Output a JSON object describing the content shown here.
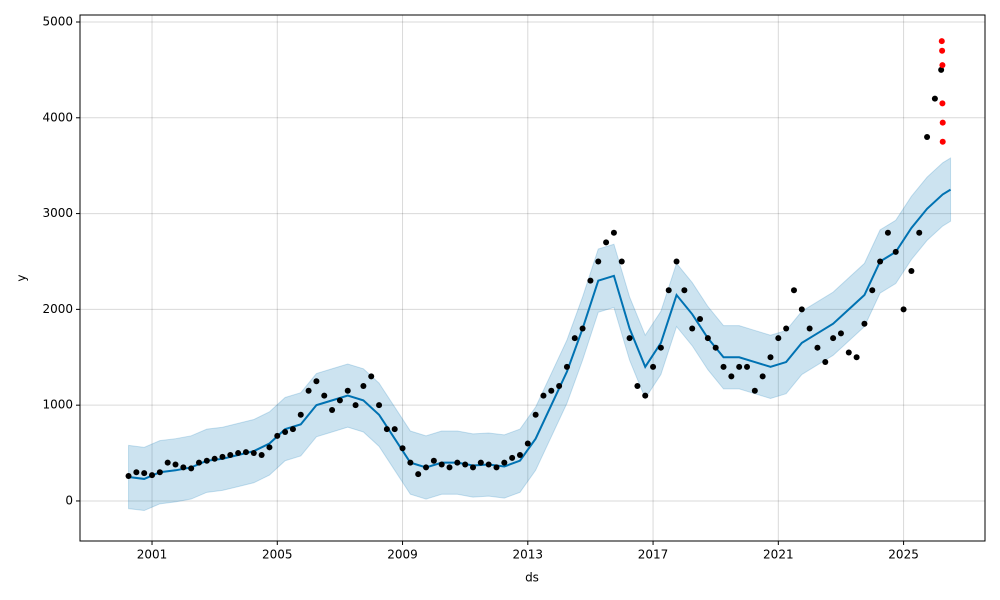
{
  "chart_data": {
    "type": "forecast",
    "xlabel": "ds",
    "ylabel": "y",
    "xlim": [
      1998.7,
      2027.6
    ],
    "xticks": [
      2001,
      2005,
      2009,
      2013,
      2017,
      2021,
      2025
    ],
    "ylim": [
      -418,
      5073
    ],
    "yticks": [
      0,
      1000,
      2000,
      3000,
      4000,
      5000
    ],
    "grid": true,
    "observed": {
      "color": "#000000",
      "x": [
        2000.25,
        2000.5,
        2000.75,
        2001,
        2001.25,
        2001.5,
        2001.75,
        2002,
        2002.25,
        2002.5,
        2002.75,
        2003,
        2003.25,
        2003.5,
        2003.75,
        2004,
        2004.25,
        2004.5,
        2004.75,
        2005,
        2005.25,
        2005.5,
        2005.75,
        2006,
        2006.25,
        2006.5,
        2006.75,
        2007,
        2007.25,
        2007.5,
        2007.75,
        2008,
        2008.25,
        2008.5,
        2008.75,
        2009,
        2009.25,
        2009.5,
        2009.75,
        2010,
        2010.25,
        2010.5,
        2010.75,
        2011,
        2011.25,
        2011.5,
        2011.75,
        2012,
        2012.25,
        2012.5,
        2012.75,
        2013,
        2013.25,
        2013.5,
        2013.75,
        2014,
        2014.25,
        2014.5,
        2014.75,
        2015,
        2015.25,
        2015.5,
        2015.75,
        2016,
        2016.25,
        2016.5,
        2016.75,
        2017,
        2017.25,
        2017.5,
        2017.75,
        2018,
        2018.25,
        2018.5,
        2018.75,
        2019,
        2019.25,
        2019.5,
        2019.75,
        2020,
        2020.25,
        2020.5,
        2020.75,
        2021,
        2021.25,
        2021.5,
        2021.75,
        2022,
        2022.25,
        2022.5,
        2022.75,
        2023,
        2023.25,
        2023.5,
        2023.75,
        2024,
        2024.25,
        2024.5,
        2024.75,
        2025,
        2025.25,
        2025.5,
        2025.75,
        2026,
        2026.2
      ],
      "values": [
        260,
        300,
        290,
        270,
        300,
        400,
        380,
        350,
        340,
        400,
        420,
        440,
        460,
        480,
        500,
        510,
        500,
        480,
        560,
        680,
        720,
        750,
        900,
        1150,
        1250,
        1100,
        950,
        1050,
        1150,
        1000,
        1200,
        1300,
        1000,
        750,
        750,
        550,
        400,
        280,
        350,
        420,
        380,
        350,
        400,
        380,
        350,
        400,
        380,
        350,
        400,
        450,
        480,
        600,
        900,
        1100,
        1150,
        1200,
        1400,
        1700,
        1800,
        2300,
        2500,
        2700,
        2800,
        2500,
        1700,
        1200,
        1100,
        1400,
        1600,
        2200,
        2500,
        2200,
        1800,
        1900,
        1700,
        1600,
        1400,
        1300,
        1400,
        1400,
        1150,
        1300,
        1500,
        1700,
        1800,
        2200,
        2000,
        1800,
        1600,
        1450,
        1700,
        1750,
        1550,
        1500,
        1850,
        2200,
        2500,
        2800,
        2600,
        2000,
        2400,
        2800,
        3800,
        4200,
        4500
      ]
    },
    "outliers": {
      "color": "#ff0000",
      "x": [
        2026.22,
        2026.23,
        2026.24,
        2026.24,
        2026.25,
        2026.25
      ],
      "values": [
        4800,
        4700,
        4550,
        4150,
        3950,
        3750
      ]
    },
    "forecast": {
      "color": "#0072b2",
      "x": [
        2000.25,
        2000.75,
        2001.25,
        2001.75,
        2002.25,
        2002.75,
        2003.25,
        2003.75,
        2004.25,
        2004.75,
        2005.25,
        2005.75,
        2006.25,
        2006.75,
        2007.25,
        2007.75,
        2008.25,
        2008.75,
        2009.25,
        2009.75,
        2010.25,
        2010.75,
        2011.25,
        2011.75,
        2012.25,
        2012.75,
        2013.25,
        2013.75,
        2014.25,
        2014.75,
        2015.25,
        2015.75,
        2016.25,
        2016.75,
        2017.25,
        2017.75,
        2018.25,
        2018.75,
        2019.25,
        2019.75,
        2020.25,
        2020.75,
        2021.25,
        2021.75,
        2022.25,
        2022.75,
        2023.25,
        2023.75,
        2024.25,
        2024.75,
        2025.25,
        2025.75,
        2026.25,
        2026.5
      ],
      "values": [
        250,
        230,
        300,
        320,
        350,
        420,
        440,
        480,
        520,
        600,
        750,
        800,
        1000,
        1050,
        1100,
        1050,
        900,
        650,
        400,
        350,
        400,
        400,
        370,
        380,
        360,
        420,
        650,
        1000,
        1350,
        1800,
        2300,
        2350,
        1800,
        1400,
        1650,
        2150,
        1950,
        1700,
        1500,
        1500,
        1450,
        1400,
        1450,
        1650,
        1750,
        1850,
        2000,
        2150,
        2500,
        2600,
        2850,
        3050,
        3200,
        3250
      ],
      "lower": [
        -80,
        -100,
        -30,
        -10,
        20,
        90,
        110,
        150,
        190,
        270,
        420,
        470,
        670,
        720,
        770,
        720,
        570,
        320,
        70,
        20,
        70,
        70,
        40,
        50,
        30,
        90,
        320,
        670,
        1020,
        1470,
        1970,
        2020,
        1470,
        1070,
        1320,
        1820,
        1620,
        1370,
        1170,
        1170,
        1120,
        1070,
        1120,
        1320,
        1420,
        1520,
        1670,
        1820,
        2170,
        2270,
        2520,
        2720,
        2870,
        2920
      ],
      "upper": [
        580,
        560,
        630,
        650,
        680,
        750,
        770,
        810,
        850,
        930,
        1080,
        1130,
        1330,
        1380,
        1430,
        1380,
        1230,
        980,
        730,
        680,
        730,
        730,
        700,
        710,
        690,
        750,
        980,
        1330,
        1680,
        2130,
        2630,
        2680,
        2130,
        1730,
        1980,
        2480,
        2280,
        2030,
        1830,
        1830,
        1780,
        1730,
        1780,
        1980,
        2080,
        2180,
        2330,
        2480,
        2830,
        2930,
        3180,
        3380,
        3530,
        3580
      ]
    }
  }
}
